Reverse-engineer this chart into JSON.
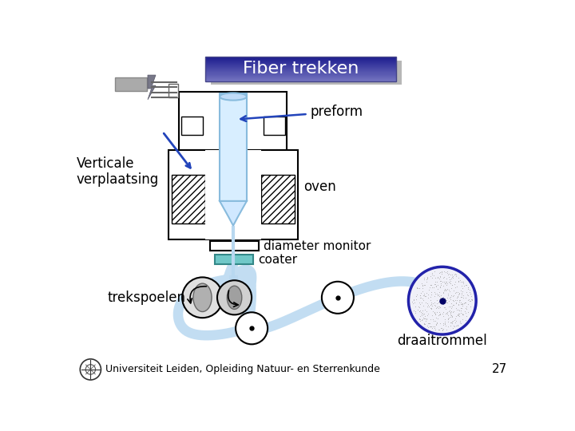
{
  "title": "Fiber trekken",
  "bg_color": "#ffffff",
  "labels": {
    "verticale": "Verticale\nverplaatsing",
    "preform": "preform",
    "oven": "oven",
    "diameter_monitor": "diameter monitor",
    "coater": "coater",
    "trekspoelen": "trekspoelen",
    "draaitrommel": "draaitrommel"
  },
  "footer_text": "Universiteit Leiden, Opleiding Natuur- en Sterrenkunde",
  "page_number": "27",
  "fiber_color": "#b8d8f0",
  "coater_color": "#70c8c8"
}
